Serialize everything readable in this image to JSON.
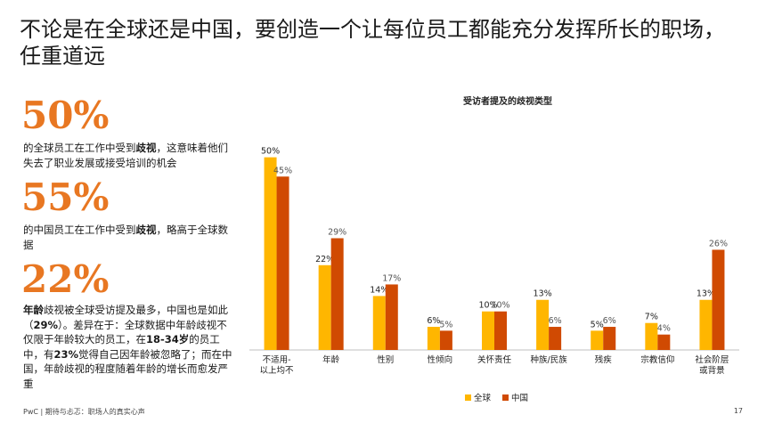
{
  "title": "不论是在全球还是中国，要创造一个让每位员工都能充分发挥所长的职场，任重道远",
  "stats": [
    {
      "number": "50%",
      "pre": "的全球员工在工作中受到",
      "bold": "歧视",
      "post": "，这意味着他们失去了职业发展或接受培训的机会"
    },
    {
      "number": "55%",
      "pre": "的中国员工在工作中受到",
      "bold": "歧视",
      "post": "，略高于全球数据"
    },
    {
      "number": "22%",
      "bold_lead": "年龄",
      "p1": "歧视被全球受访提及最多，中国也是如此（",
      "b1": "29%",
      "p2": "）。差异在于：全球数据中年龄歧视不仅限于年龄较大的员工，在",
      "b2": "18-34岁",
      "p3": "的员工中，有",
      "b3": "23%",
      "p4": "觉得自己因年龄被忽略了；而在中国，年龄歧视的程度随着年龄的增长而愈发严重"
    }
  ],
  "footer": "PwC | 期待与忐忑：职场人的真实心声",
  "page_number": "17",
  "colors": {
    "global": "#ffb600",
    "china": "#d04a02",
    "accent": "#e87722"
  },
  "chart_data": {
    "type": "bar",
    "title": "受访者提及的歧视类型",
    "categories": [
      "不适用-\n以上均不",
      "年龄",
      "性别",
      "性倾向",
      "关怀责任",
      "种族/民族",
      "残疾",
      "宗教信仰",
      "社会阶层\n或背景"
    ],
    "series": [
      {
        "name": "全球",
        "values": [
          50,
          22,
          14,
          6,
          10,
          13,
          5,
          7,
          13
        ],
        "labels": [
          "50%",
          "22%",
          "14%",
          "6%",
          "10%",
          "13%",
          "5%",
          "7%",
          "13%"
        ]
      },
      {
        "name": "中国",
        "values": [
          45,
          29,
          17,
          5,
          10,
          6,
          6,
          4,
          26
        ],
        "labels": [
          "45%",
          "29%",
          "17%",
          "5%",
          "10%",
          "6%",
          "6%",
          "4%",
          "26%"
        ]
      }
    ],
    "ylim": [
      0,
      55
    ],
    "legend": "bottom"
  }
}
